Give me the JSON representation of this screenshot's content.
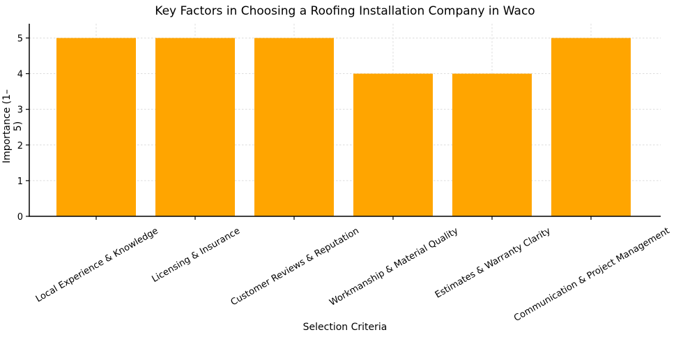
{
  "chart_data": {
    "type": "bar",
    "title": "Key Factors in Choosing a Roofing Installation Company in Waco",
    "xlabel": "Selection Criteria",
    "ylabel": "Importance (1–5)",
    "categories": [
      "Local Experience & Knowledge",
      "Licensing & Insurance",
      "Customer Reviews & Reputation",
      "Workmanship & Material Quality",
      "Estimates & Warranty Clarity",
      "Communication & Project Management"
    ],
    "values": [
      5,
      5,
      5,
      4,
      4,
      5
    ],
    "yticks": [
      0,
      1,
      2,
      3,
      4,
      5
    ],
    "ylim": [
      0,
      5.4
    ],
    "bar_color": "#FFA500",
    "grid": true,
    "grid_color": "#DCDCDC",
    "axis_color": "#000000",
    "background": "#FFFFFF",
    "label_rotation_deg": 30,
    "legend": "none"
  }
}
